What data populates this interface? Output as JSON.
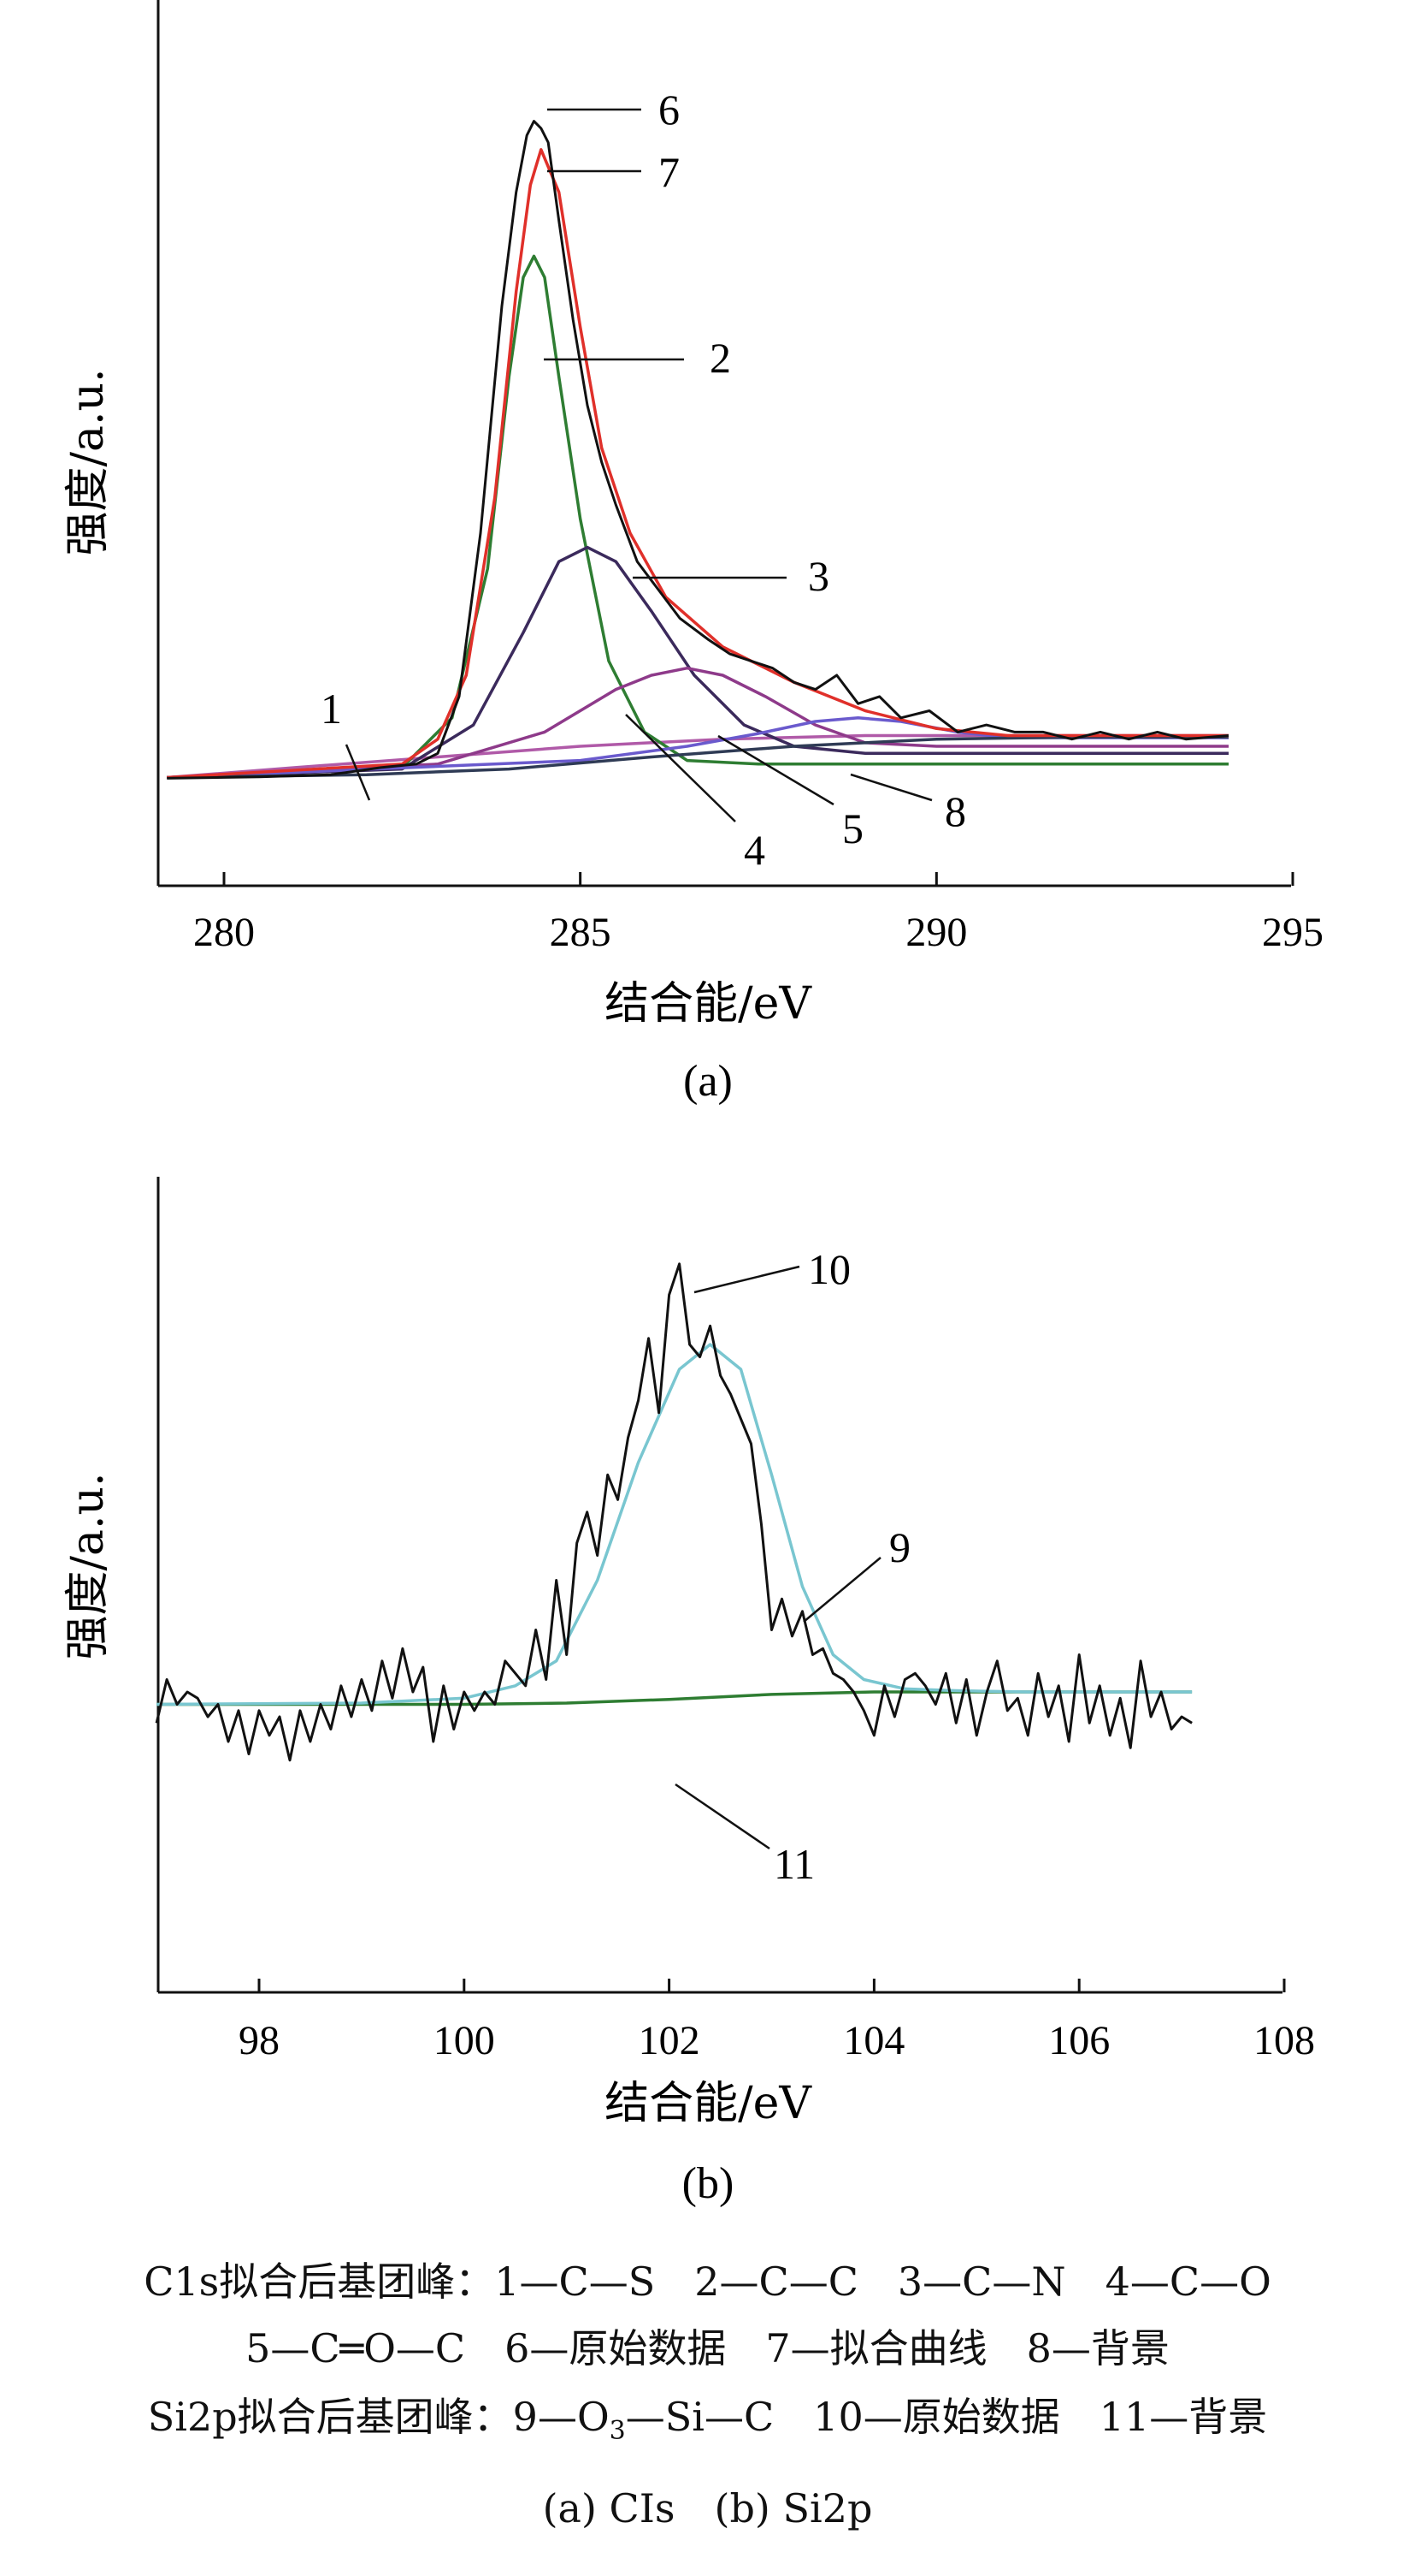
{
  "chart_data": [
    {
      "id": "a",
      "type": "line",
      "panel_label": "(a)",
      "xlabel": "结合能/eV",
      "ylabel": "强度/a.u.",
      "xlim": [
        279,
        295
      ],
      "xticks": [
        280,
        285,
        290,
        295
      ],
      "ylim": [
        0,
        1
      ],
      "series": [
        {
          "id": "1",
          "color": "#b05aa8",
          "x": [
            279.2,
            281,
            283,
            285,
            287,
            289,
            291,
            294.1
          ],
          "y": [
            0.056,
            0.07,
            0.085,
            0.1,
            0.11,
            0.115,
            0.115,
            0.115
          ]
        },
        {
          "id": "2",
          "color": "#2e7d32",
          "x": [
            279.2,
            282.5,
            283.2,
            283.7,
            284.0,
            284.2,
            284.35,
            284.5,
            284.7,
            285.0,
            285.4,
            285.9,
            286.5,
            287.5,
            294.1
          ],
          "y": [
            0.056,
            0.07,
            0.14,
            0.35,
            0.62,
            0.76,
            0.79,
            0.76,
            0.62,
            0.42,
            0.22,
            0.12,
            0.08,
            0.075,
            0.075
          ]
        },
        {
          "id": "3",
          "color": "#3b2a5c",
          "x": [
            279.2,
            282.5,
            283.5,
            284.2,
            284.7,
            285.1,
            285.5,
            286.0,
            286.6,
            287.3,
            288.0,
            289.0,
            294.1
          ],
          "y": [
            0.056,
            0.068,
            0.13,
            0.26,
            0.36,
            0.38,
            0.36,
            0.29,
            0.2,
            0.13,
            0.1,
            0.09,
            0.09
          ]
        },
        {
          "id": "4",
          "color": "#8e3a8a",
          "x": [
            279.2,
            283,
            284.5,
            285.5,
            286.0,
            286.5,
            287.0,
            287.6,
            288.3,
            289.0,
            290.0,
            294.1
          ],
          "y": [
            0.056,
            0.075,
            0.12,
            0.18,
            0.2,
            0.21,
            0.2,
            0.17,
            0.13,
            0.105,
            0.1,
            0.1
          ]
        },
        {
          "id": "5",
          "color": "#6a5acd",
          "x": [
            279.2,
            285,
            286.5,
            287.5,
            288.3,
            288.9,
            289.5,
            290.3,
            291.0,
            294.1
          ],
          "y": [
            0.056,
            0.08,
            0.1,
            0.118,
            0.135,
            0.14,
            0.135,
            0.12,
            0.112,
            0.112
          ]
        },
        {
          "id": "8",
          "color": "#2f3b55",
          "x": [
            279.2,
            282,
            284,
            286,
            288,
            290,
            292,
            294.1
          ],
          "y": [
            0.056,
            0.06,
            0.068,
            0.085,
            0.1,
            0.11,
            0.113,
            0.113
          ]
        },
        {
          "id": "7",
          "color": "#e0302a",
          "x": [
            279.2,
            282.5,
            283.0,
            283.4,
            283.8,
            284.1,
            284.3,
            284.45,
            284.7,
            285.0,
            285.3,
            285.7,
            286.2,
            287.0,
            288.0,
            289.0,
            290.0,
            291.0,
            292.0,
            294.1
          ],
          "y": [
            0.056,
            0.075,
            0.11,
            0.2,
            0.45,
            0.74,
            0.89,
            0.94,
            0.88,
            0.69,
            0.52,
            0.4,
            0.31,
            0.24,
            0.19,
            0.15,
            0.125,
            0.115,
            0.115,
            0.115
          ]
        },
        {
          "id": "6",
          "color": "#111111",
          "x": [
            279.2,
            280.5,
            281.5,
            282.2,
            282.7,
            283.0,
            283.3,
            283.6,
            283.9,
            284.1,
            284.25,
            284.35,
            284.45,
            284.55,
            284.7,
            284.9,
            285.1,
            285.3,
            285.5,
            285.8,
            286.1,
            286.4,
            286.8,
            287.1,
            287.4,
            287.7,
            288.0,
            288.3,
            288.6,
            288.9,
            289.2,
            289.5,
            289.9,
            290.3,
            290.7,
            291.1,
            291.5,
            291.9,
            292.3,
            292.7,
            293.1,
            293.5,
            294.1
          ],
          "y": [
            0.055,
            0.057,
            0.06,
            0.07,
            0.075,
            0.09,
            0.17,
            0.4,
            0.72,
            0.88,
            0.96,
            0.98,
            0.97,
            0.95,
            0.84,
            0.7,
            0.58,
            0.5,
            0.44,
            0.36,
            0.32,
            0.28,
            0.25,
            0.23,
            0.22,
            0.21,
            0.19,
            0.18,
            0.2,
            0.16,
            0.17,
            0.14,
            0.15,
            0.12,
            0.13,
            0.12,
            0.12,
            0.11,
            0.12,
            0.11,
            0.12,
            0.11,
            0.115
          ]
        }
      ],
      "callouts": [
        "1",
        "2",
        "3",
        "4",
        "5",
        "6",
        "7",
        "8"
      ]
    },
    {
      "id": "b",
      "type": "line",
      "panel_label": "(b)",
      "xlabel": "结合能/eV",
      "ylabel": "强度/a.u.",
      "xlim": [
        97,
        108
      ],
      "xticks": [
        98,
        100,
        102,
        104,
        106,
        108
      ],
      "ylim": [
        0,
        1
      ],
      "series": [
        {
          "id": "11",
          "color": "#2e7d32",
          "x": [
            97.0,
            98,
            99,
            100,
            101,
            102,
            103,
            104,
            105,
            106,
            107.1
          ],
          "y": [
            0.26,
            0.26,
            0.26,
            0.26,
            0.262,
            0.268,
            0.276,
            0.28,
            0.28,
            0.28,
            0.28
          ]
        },
        {
          "id": "9",
          "color": "#79c6d0",
          "x": [
            97.0,
            99.0,
            100.0,
            100.5,
            100.9,
            101.3,
            101.7,
            102.1,
            102.4,
            102.7,
            103.0,
            103.3,
            103.6,
            103.9,
            104.3,
            104.8,
            105.5,
            107.1
          ],
          "y": [
            0.26,
            0.262,
            0.27,
            0.29,
            0.33,
            0.46,
            0.65,
            0.8,
            0.84,
            0.8,
            0.63,
            0.45,
            0.34,
            0.3,
            0.285,
            0.282,
            0.28,
            0.28
          ]
        },
        {
          "id": "10",
          "color": "#111111",
          "x": [
            97.0,
            97.1,
            97.2,
            97.3,
            97.4,
            97.5,
            97.6,
            97.7,
            97.8,
            97.9,
            98.0,
            98.1,
            98.2,
            98.3,
            98.4,
            98.5,
            98.6,
            98.7,
            98.8,
            98.9,
            99.0,
            99.1,
            99.2,
            99.3,
            99.4,
            99.5,
            99.6,
            99.7,
            99.8,
            99.9,
            100.0,
            100.1,
            100.2,
            100.3,
            100.4,
            100.5,
            100.6,
            100.7,
            100.8,
            100.9,
            101.0,
            101.1,
            101.2,
            101.3,
            101.4,
            101.5,
            101.6,
            101.7,
            101.8,
            101.9,
            102.0,
            102.1,
            102.2,
            102.3,
            102.4,
            102.5,
            102.6,
            102.7,
            102.8,
            102.9,
            103.0,
            103.1,
            103.2,
            103.3,
            103.4,
            103.5,
            103.6,
            103.7,
            103.8,
            103.9,
            104.0,
            104.1,
            104.2,
            104.3,
            104.4,
            104.5,
            104.6,
            104.7,
            104.8,
            104.9,
            105.0,
            105.1,
            105.2,
            105.3,
            105.4,
            105.5,
            105.6,
            105.7,
            105.8,
            105.9,
            106.0,
            106.1,
            106.2,
            106.3,
            106.4,
            106.5,
            106.6,
            106.7,
            106.8,
            106.9,
            107.0,
            107.1
          ],
          "y": [
            0.23,
            0.3,
            0.26,
            0.28,
            0.27,
            0.24,
            0.26,
            0.2,
            0.25,
            0.18,
            0.25,
            0.21,
            0.24,
            0.17,
            0.25,
            0.2,
            0.26,
            0.22,
            0.29,
            0.24,
            0.3,
            0.25,
            0.33,
            0.27,
            0.35,
            0.28,
            0.32,
            0.2,
            0.29,
            0.22,
            0.28,
            0.25,
            0.28,
            0.26,
            0.33,
            0.31,
            0.29,
            0.38,
            0.3,
            0.46,
            0.34,
            0.52,
            0.57,
            0.5,
            0.63,
            0.59,
            0.69,
            0.75,
            0.85,
            0.73,
            0.92,
            0.97,
            0.84,
            0.82,
            0.87,
            0.79,
            0.76,
            0.72,
            0.68,
            0.55,
            0.38,
            0.43,
            0.37,
            0.41,
            0.34,
            0.35,
            0.31,
            0.3,
            0.28,
            0.25,
            0.21,
            0.29,
            0.24,
            0.3,
            0.31,
            0.29,
            0.26,
            0.31,
            0.23,
            0.3,
            0.21,
            0.28,
            0.33,
            0.25,
            0.27,
            0.21,
            0.31,
            0.24,
            0.29,
            0.2,
            0.34,
            0.23,
            0.29,
            0.21,
            0.27,
            0.19,
            0.33,
            0.24,
            0.28,
            0.22,
            0.24,
            0.23
          ]
        }
      ],
      "callouts": [
        "9",
        "10",
        "11"
      ]
    }
  ],
  "legend": {
    "line1": "C1s拟合后基团峰：1—C—S　2—C—C　3—C—N　4—C—O",
    "line2": "5—C═O—C　6—原始数据　7—拟合曲线　8—背景",
    "line3_pre": "Si2p拟合后基团峰：9—O",
    "line3_sub": "3",
    "line3_post": "—Si—C　10—原始数据　11—背景",
    "line4": "(a) CIs　(b) Si2p"
  }
}
